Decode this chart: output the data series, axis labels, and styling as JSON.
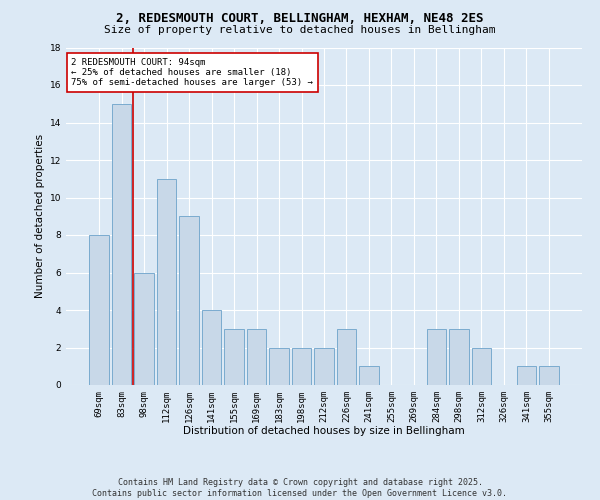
{
  "title1": "2, REDESMOUTH COURT, BELLINGHAM, HEXHAM, NE48 2ES",
  "title2": "Size of property relative to detached houses in Bellingham",
  "categories": [
    "69sqm",
    "83sqm",
    "98sqm",
    "112sqm",
    "126sqm",
    "141sqm",
    "155sqm",
    "169sqm",
    "183sqm",
    "198sqm",
    "212sqm",
    "226sqm",
    "241sqm",
    "255sqm",
    "269sqm",
    "284sqm",
    "298sqm",
    "312sqm",
    "326sqm",
    "341sqm",
    "355sqm"
  ],
  "values": [
    8,
    15,
    6,
    11,
    9,
    4,
    3,
    3,
    2,
    2,
    2,
    3,
    1,
    0,
    0,
    3,
    3,
    2,
    0,
    1,
    1
  ],
  "bar_color": "#c8d8e8",
  "bar_edge_color": "#7aabcf",
  "vline_x": 1.5,
  "vline_color": "#cc0000",
  "annotation_text": "2 REDESMOUTH COURT: 94sqm\n← 25% of detached houses are smaller (18)\n75% of semi-detached houses are larger (53) →",
  "annotation_box_color": "white",
  "annotation_box_edge": "#cc0000",
  "xlabel": "Distribution of detached houses by size in Bellingham",
  "ylabel": "Number of detached properties",
  "ylim": [
    0,
    18
  ],
  "yticks": [
    0,
    2,
    4,
    6,
    8,
    10,
    12,
    14,
    16,
    18
  ],
  "bg_color": "#dce9f5",
  "plot_bg_color": "#dce9f5",
  "grid_color": "white",
  "footer1": "Contains HM Land Registry data © Crown copyright and database right 2025.",
  "footer2": "Contains public sector information licensed under the Open Government Licence v3.0.",
  "title_fontsize": 9,
  "subtitle_fontsize": 8,
  "axis_label_fontsize": 7.5,
  "tick_fontsize": 6.5,
  "annotation_fontsize": 6.5,
  "footer_fontsize": 6
}
